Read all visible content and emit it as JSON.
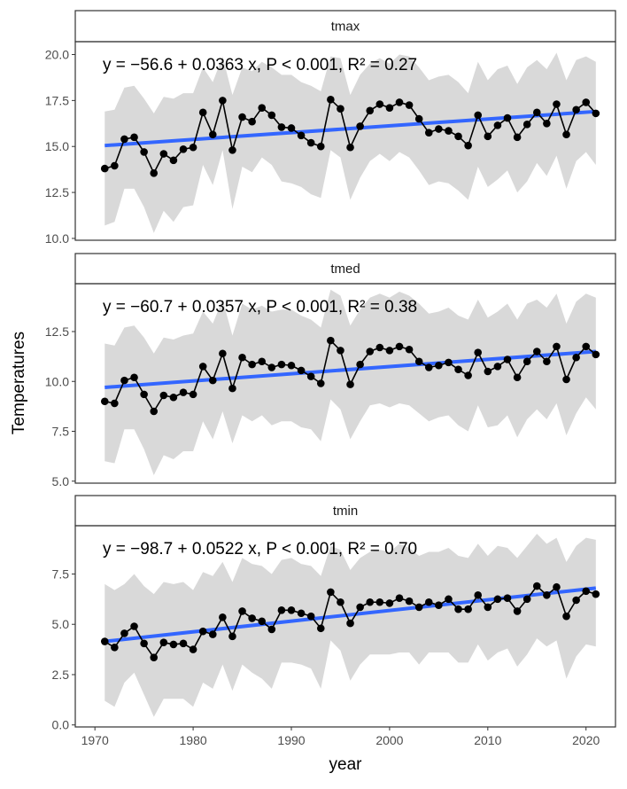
{
  "chart_data": {
    "type": "line",
    "xlabel": "year",
    "ylabel": "Temperatures",
    "x_ticks": [
      1970,
      1980,
      1990,
      2000,
      2010,
      2020
    ],
    "xlim": [
      1968,
      2023
    ],
    "colors": {
      "band": "#d9d9d9",
      "trend": "#3366ff",
      "points": "#000000",
      "strip_fill": "#ffffff",
      "panel_border": "#333333"
    },
    "panels": [
      {
        "strip": "tmax",
        "equation": "y = −56.6 + 0.0363 x, P < 0.001, R² = 0.27",
        "ylim": [
          9.9,
          20.7
        ],
        "y_ticks": [
          10.0,
          12.5,
          15.0,
          17.5,
          20.0
        ],
        "y_tick_labels": [
          "10.0",
          "12.5",
          "15.0",
          "17.5",
          "20.0"
        ],
        "trend": {
          "x": [
            1971,
            2021
          ],
          "y": [
            15.05,
            16.9
          ]
        },
        "x": [
          1971,
          1972,
          1973,
          1974,
          1975,
          1976,
          1977,
          1978,
          1979,
          1980,
          1981,
          1982,
          1983,
          1984,
          1985,
          1986,
          1987,
          1988,
          1989,
          1990,
          1991,
          1992,
          1993,
          1994,
          1995,
          1996,
          1997,
          1998,
          1999,
          2000,
          2001,
          2002,
          2003,
          2004,
          2005,
          2006,
          2007,
          2008,
          2009,
          2010,
          2011,
          2012,
          2013,
          2014,
          2015,
          2016,
          2017,
          2018,
          2019,
          2020,
          2021
        ],
        "mean": [
          13.8,
          13.95,
          15.4,
          15.5,
          14.7,
          13.55,
          14.6,
          14.25,
          14.85,
          14.95,
          16.85,
          15.65,
          17.5,
          14.8,
          16.6,
          16.35,
          17.1,
          16.7,
          16.05,
          16.0,
          15.6,
          15.2,
          15.0,
          17.55,
          17.05,
          14.95,
          16.1,
          16.95,
          17.3,
          17.1,
          17.4,
          17.25,
          16.5,
          15.75,
          15.95,
          15.85,
          15.55,
          15.05,
          16.7,
          15.55,
          16.15,
          16.55,
          15.5,
          16.2,
          16.85,
          16.25,
          17.3,
          15.65,
          17.0,
          17.4,
          16.8
        ],
        "min": [
          10.7,
          10.9,
          12.7,
          12.7,
          11.7,
          10.3,
          11.5,
          10.9,
          11.7,
          11.8,
          14.0,
          12.9,
          14.8,
          11.6,
          13.9,
          13.6,
          14.4,
          14.0,
          13.1,
          13.0,
          12.8,
          12.4,
          12.2,
          14.8,
          14.4,
          12.1,
          13.3,
          14.2,
          14.6,
          14.2,
          14.7,
          14.4,
          13.7,
          12.9,
          13.1,
          13.0,
          12.6,
          12.1,
          13.9,
          12.8,
          13.2,
          13.7,
          12.5,
          13.1,
          14.1,
          13.4,
          14.5,
          12.7,
          14.2,
          14.7,
          14.0
        ],
        "max": [
          16.9,
          17.0,
          18.2,
          18.3,
          17.6,
          16.8,
          17.7,
          17.6,
          17.9,
          17.9,
          19.3,
          18.5,
          19.9,
          17.8,
          19.3,
          19.1,
          19.6,
          19.3,
          18.9,
          18.9,
          18.5,
          18.3,
          18.0,
          19.9,
          19.8,
          17.8,
          18.9,
          19.5,
          19.8,
          19.5,
          20.0,
          19.9,
          19.3,
          18.6,
          18.8,
          18.9,
          18.5,
          17.9,
          19.6,
          18.6,
          19.2,
          19.4,
          18.4,
          19.3,
          19.7,
          19.2,
          20.1,
          18.6,
          19.7,
          19.9,
          19.6
        ]
      },
      {
        "strip": "tmed",
        "equation": "y = −60.7 + 0.0357 x, P < 0.001, R² = 0.38",
        "ylim": [
          4.9,
          14.9
        ],
        "y_ticks": [
          5.0,
          7.5,
          10.0,
          12.5
        ],
        "y_tick_labels": [
          "5.0",
          "7.5",
          "10.0",
          "12.5"
        ],
        "trend": {
          "x": [
            1971,
            2021
          ],
          "y": [
            9.7,
            11.5
          ]
        },
        "x": [
          1971,
          1972,
          1973,
          1974,
          1975,
          1976,
          1977,
          1978,
          1979,
          1980,
          1981,
          1982,
          1983,
          1984,
          1985,
          1986,
          1987,
          1988,
          1989,
          1990,
          1991,
          1992,
          1993,
          1994,
          1995,
          1996,
          1997,
          1998,
          1999,
          2000,
          2001,
          2002,
          2003,
          2004,
          2005,
          2006,
          2007,
          2008,
          2009,
          2010,
          2011,
          2012,
          2013,
          2014,
          2015,
          2016,
          2017,
          2018,
          2019,
          2020,
          2021
        ],
        "mean": [
          9.0,
          8.9,
          10.05,
          10.2,
          9.35,
          8.5,
          9.3,
          9.2,
          9.45,
          9.35,
          10.75,
          10.05,
          11.4,
          9.65,
          11.2,
          10.85,
          11.0,
          10.7,
          10.85,
          10.8,
          10.55,
          10.25,
          9.9,
          12.05,
          11.55,
          9.85,
          10.85,
          11.5,
          11.7,
          11.55,
          11.75,
          11.6,
          11.0,
          10.7,
          10.8,
          10.95,
          10.6,
          10.3,
          11.45,
          10.5,
          10.75,
          11.1,
          10.2,
          11.0,
          11.5,
          11.0,
          11.75,
          10.1,
          11.2,
          11.75,
          11.35
        ],
        "min": [
          6.0,
          5.9,
          7.6,
          7.6,
          6.6,
          5.3,
          6.3,
          6.1,
          6.5,
          6.5,
          8.0,
          7.1,
          8.5,
          6.9,
          8.3,
          8.0,
          8.3,
          7.8,
          8.0,
          8.0,
          7.7,
          7.6,
          7.0,
          9.1,
          8.6,
          7.1,
          8.0,
          8.8,
          8.9,
          8.7,
          8.9,
          8.8,
          8.4,
          8.0,
          8.2,
          8.3,
          7.8,
          7.5,
          8.8,
          7.7,
          7.8,
          8.3,
          7.2,
          8.1,
          8.6,
          8.1,
          8.9,
          7.3,
          8.4,
          9.2,
          8.6
        ],
        "max": [
          11.9,
          11.8,
          12.7,
          12.8,
          12.2,
          11.4,
          12.2,
          12.1,
          12.3,
          12.4,
          13.5,
          12.9,
          14.1,
          12.3,
          13.9,
          13.6,
          13.8,
          13.5,
          13.6,
          13.6,
          13.3,
          13.1,
          12.7,
          14.6,
          14.3,
          12.8,
          13.6,
          14.2,
          14.4,
          14.2,
          14.5,
          14.3,
          13.9,
          13.4,
          13.5,
          13.7,
          13.3,
          13.1,
          14.1,
          13.2,
          13.5,
          13.9,
          13.1,
          13.9,
          14.1,
          13.7,
          14.4,
          12.9,
          14.0,
          14.4,
          14.2
        ]
      },
      {
        "strip": "tmin",
        "equation": "y = −98.7 + 0.0522 x, P < 0.001, R² = 0.70",
        "ylim": [
          -0.1,
          9.9
        ],
        "y_ticks": [
          0.0,
          2.5,
          5.0,
          7.5
        ],
        "y_tick_labels": [
          "0.0",
          "2.5",
          "5.0",
          "7.5"
        ],
        "trend": {
          "x": [
            1971,
            2021
          ],
          "y": [
            4.15,
            6.8
          ]
        },
        "x": [
          1971,
          1972,
          1973,
          1974,
          1975,
          1976,
          1977,
          1978,
          1979,
          1980,
          1981,
          1982,
          1983,
          1984,
          1985,
          1986,
          1987,
          1988,
          1989,
          1990,
          1991,
          1992,
          1993,
          1994,
          1995,
          1996,
          1997,
          1998,
          1999,
          2000,
          2001,
          2002,
          2003,
          2004,
          2005,
          2006,
          2007,
          2008,
          2009,
          2010,
          2011,
          2012,
          2013,
          2014,
          2015,
          2016,
          2017,
          2018,
          2019,
          2020,
          2021
        ],
        "mean": [
          4.15,
          3.85,
          4.55,
          4.9,
          4.05,
          3.35,
          4.1,
          4.0,
          4.05,
          3.75,
          4.65,
          4.5,
          5.35,
          4.4,
          5.65,
          5.3,
          5.15,
          4.75,
          5.7,
          5.7,
          5.55,
          5.4,
          4.8,
          6.6,
          6.1,
          5.05,
          5.85,
          6.1,
          6.1,
          6.05,
          6.3,
          6.15,
          5.85,
          6.1,
          5.95,
          6.25,
          5.75,
          5.75,
          6.45,
          5.85,
          6.25,
          6.3,
          5.65,
          6.25,
          6.9,
          6.45,
          6.85,
          5.4,
          6.2,
          6.65,
          6.5
        ],
        "min": [
          1.2,
          0.9,
          2.1,
          2.6,
          1.5,
          0.4,
          1.3,
          1.3,
          1.3,
          0.9,
          2.1,
          1.8,
          3.0,
          1.7,
          3.0,
          2.6,
          2.3,
          1.8,
          3.1,
          3.1,
          3.0,
          2.8,
          1.8,
          4.2,
          3.7,
          2.2,
          3.0,
          3.5,
          3.5,
          3.5,
          3.6,
          3.6,
          3.0,
          3.6,
          3.6,
          3.6,
          3.1,
          3.1,
          4.0,
          3.2,
          3.6,
          3.8,
          2.9,
          3.5,
          4.3,
          3.9,
          4.2,
          2.3,
          3.4,
          4.0,
          3.9
        ],
        "max": [
          7.0,
          6.7,
          7.0,
          7.5,
          6.9,
          6.5,
          7.1,
          7.0,
          7.1,
          6.7,
          7.6,
          7.4,
          8.1,
          7.1,
          8.3,
          8.0,
          7.9,
          7.5,
          8.2,
          8.3,
          8.0,
          7.9,
          7.4,
          8.9,
          8.7,
          7.7,
          8.3,
          8.6,
          8.7,
          8.6,
          9.0,
          8.8,
          8.4,
          8.6,
          8.6,
          8.8,
          8.4,
          8.3,
          9.0,
          8.4,
          8.9,
          8.8,
          8.3,
          8.9,
          9.5,
          9.0,
          9.3,
          8.1,
          8.9,
          9.3,
          9.2
        ]
      }
    ]
  }
}
